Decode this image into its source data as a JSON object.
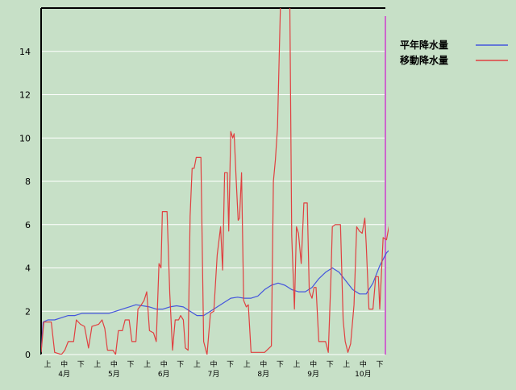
{
  "chart_data": {
    "type": "line",
    "title": "",
    "xlabel": "",
    "ylabel": "",
    "ylim": [
      0,
      16
    ],
    "y_ticks": [
      0,
      2,
      4,
      6,
      8,
      10,
      12,
      14
    ],
    "grid": "horizontal",
    "legend_placement": "top-right",
    "x_period_ticks": [
      "上",
      "中",
      "下",
      "上",
      "中",
      "下",
      "上",
      "中",
      "下",
      "上",
      "中",
      "下",
      "上",
      "中",
      "下",
      "上",
      "中",
      "下",
      "上",
      "中",
      "下"
    ],
    "x_month_labels": [
      "4月",
      "5月",
      "6月",
      "7月",
      "8月",
      "9月",
      "10月"
    ],
    "colors": {
      "background": "#c7e0c7",
      "grid": "#ffffff",
      "axis": "#000000",
      "marker_line": "#cc66cc",
      "normal": "#4455dd",
      "moving": "#e04040"
    },
    "series": [
      {
        "name": "平年降水量",
        "color": "#4455dd",
        "values": [
          [
            0,
            0.1
          ],
          [
            0.3,
            1.5
          ],
          [
            1,
            1.6
          ],
          [
            2,
            1.6
          ],
          [
            3,
            1.7
          ],
          [
            4,
            1.8
          ],
          [
            5,
            1.8
          ],
          [
            6,
            1.9
          ],
          [
            7,
            1.9
          ],
          [
            8,
            1.9
          ],
          [
            9,
            1.9
          ],
          [
            10,
            1.9
          ],
          [
            11,
            2.0
          ],
          [
            12,
            2.1
          ],
          [
            13,
            2.2
          ],
          [
            14,
            2.3
          ],
          [
            15,
            2.25
          ],
          [
            16,
            2.2
          ],
          [
            17,
            2.1
          ],
          [
            18,
            2.1
          ],
          [
            19,
            2.2
          ],
          [
            20,
            2.25
          ],
          [
            21,
            2.2
          ],
          [
            22,
            2.0
          ],
          [
            23,
            1.8
          ],
          [
            24,
            1.8
          ],
          [
            25,
            2.0
          ],
          [
            26,
            2.2
          ],
          [
            27,
            2.4
          ],
          [
            28,
            2.6
          ],
          [
            29,
            2.65
          ],
          [
            30,
            2.6
          ],
          [
            31,
            2.6
          ],
          [
            32,
            2.7
          ],
          [
            33,
            3.0
          ],
          [
            34,
            3.2
          ],
          [
            35,
            3.3
          ],
          [
            36,
            3.2
          ],
          [
            37,
            3.0
          ],
          [
            38,
            2.9
          ],
          [
            39,
            2.9
          ],
          [
            40,
            3.1
          ],
          [
            41,
            3.5
          ],
          [
            42,
            3.8
          ],
          [
            43,
            4.0
          ],
          [
            44,
            3.8
          ],
          [
            45,
            3.4
          ],
          [
            46,
            3.0
          ],
          [
            47,
            2.8
          ],
          [
            48,
            2.8
          ],
          [
            49,
            3.3
          ],
          [
            50,
            4.1
          ],
          [
            51,
            4.7
          ],
          [
            52,
            5.0
          ],
          [
            53,
            5.0
          ],
          [
            54,
            4.7
          ],
          [
            55,
            4.4
          ],
          [
            56,
            4.1
          ],
          [
            57,
            3.9
          ],
          [
            58,
            3.8
          ],
          [
            59,
            3.7
          ],
          [
            60,
            3.5
          ],
          [
            61,
            3.2
          ],
          [
            62,
            2.9
          ],
          [
            63,
            2.7
          ],
          [
            64,
            2.6
          ],
          [
            65,
            2.6
          ],
          [
            66,
            2.7
          ],
          [
            67,
            2.9
          ],
          [
            68,
            3.1
          ],
          [
            69,
            3.3
          ],
          [
            70,
            3.5
          ],
          [
            71,
            3.6
          ],
          [
            71.8,
            3.5
          ]
        ]
      },
      {
        "name": "移動降水量",
        "color": "#e04040",
        "values": [
          [
            0,
            0.1
          ],
          [
            0.4,
            1.5
          ],
          [
            1.5,
            1.5
          ],
          [
            2,
            0.1
          ],
          [
            3,
            0
          ],
          [
            3.5,
            0.2
          ],
          [
            4,
            0.6
          ],
          [
            4.8,
            0.6
          ],
          [
            5.2,
            1.6
          ],
          [
            5.8,
            1.4
          ],
          [
            6.4,
            1.3
          ],
          [
            7,
            0.3
          ],
          [
            7.5,
            1.3
          ],
          [
            8.5,
            1.4
          ],
          [
            9,
            1.6
          ],
          [
            9.4,
            1.2
          ],
          [
            9.8,
            0.2
          ],
          [
            10.6,
            0.2
          ],
          [
            11,
            0
          ],
          [
            11.4,
            1.1
          ],
          [
            12,
            1.1
          ],
          [
            12.4,
            1.6
          ],
          [
            13,
            1.6
          ],
          [
            13.4,
            0.6
          ],
          [
            14,
            0.6
          ],
          [
            14.3,
            2.1
          ],
          [
            14.8,
            2.3
          ],
          [
            15.2,
            2.5
          ],
          [
            15.6,
            2.9
          ],
          [
            16,
            1.1
          ],
          [
            16.6,
            1.0
          ],
          [
            17,
            0.6
          ],
          [
            17.4,
            4.2
          ],
          [
            17.7,
            4.0
          ],
          [
            17.9,
            6.6
          ],
          [
            18.6,
            6.6
          ],
          [
            19,
            2.8
          ],
          [
            19.4,
            0.2
          ],
          [
            19.8,
            1.6
          ],
          [
            20.3,
            1.6
          ],
          [
            20.6,
            1.8
          ],
          [
            21,
            1.6
          ],
          [
            21.3,
            0.3
          ],
          [
            21.7,
            0.2
          ],
          [
            22,
            6.4
          ],
          [
            22.3,
            8.6
          ],
          [
            22.6,
            8.6
          ],
          [
            22.9,
            9.1
          ],
          [
            23.6,
            9.1
          ],
          [
            24,
            0.6
          ],
          [
            24.5,
            0
          ],
          [
            25,
            1.9
          ],
          [
            25.5,
            2.0
          ],
          [
            26,
            4.6
          ],
          [
            26.5,
            5.9
          ],
          [
            26.8,
            3.9
          ],
          [
            27.1,
            8.4
          ],
          [
            27.5,
            8.4
          ],
          [
            27.7,
            5.7
          ],
          [
            28,
            10.3
          ],
          [
            28.3,
            10.0
          ],
          [
            28.5,
            10.2
          ],
          [
            28.8,
            8.1
          ],
          [
            29.1,
            6.2
          ],
          [
            29.3,
            6.3
          ],
          [
            29.6,
            8.4
          ],
          [
            29.9,
            2.5
          ],
          [
            30.3,
            2.2
          ],
          [
            30.6,
            2.3
          ],
          [
            31,
            0.1
          ],
          [
            33,
            0.1
          ],
          [
            34,
            0.4
          ],
          [
            34.3,
            8.0
          ],
          [
            34.6,
            9.0
          ],
          [
            34.9,
            10.5
          ],
          [
            35.1,
            13.0
          ],
          [
            35.4,
            17.0
          ],
          [
            36.2,
            18.0
          ],
          [
            36.7,
            17.0
          ],
          [
            37,
            5.5
          ],
          [
            37.4,
            2.1
          ],
          [
            37.7,
            5.9
          ],
          [
            38,
            5.6
          ],
          [
            38.4,
            4.2
          ],
          [
            38.8,
            7.0
          ],
          [
            39.3,
            7.0
          ],
          [
            39.6,
            2.9
          ],
          [
            40,
            2.6
          ],
          [
            40.3,
            3.1
          ],
          [
            40.6,
            3.1
          ],
          [
            41,
            0.6
          ],
          [
            42,
            0.6
          ],
          [
            42.4,
            0.1
          ],
          [
            42.8,
            3.6
          ],
          [
            43,
            5.9
          ],
          [
            43.4,
            6.0
          ],
          [
            44.2,
            6.0
          ],
          [
            44.6,
            1.6
          ],
          [
            44.9,
            0.6
          ],
          [
            45.3,
            0.1
          ],
          [
            45.7,
            0.5
          ],
          [
            46.2,
            2.3
          ],
          [
            46.6,
            5.9
          ],
          [
            47,
            5.7
          ],
          [
            47.4,
            5.6
          ],
          [
            47.8,
            6.3
          ],
          [
            48,
            5.1
          ],
          [
            48.4,
            2.1
          ],
          [
            49,
            2.1
          ],
          [
            49.4,
            3.6
          ],
          [
            49.8,
            3.6
          ],
          [
            50,
            2.1
          ],
          [
            50.5,
            5.4
          ],
          [
            51,
            5.3
          ],
          [
            51.4,
            6.0
          ],
          [
            51.8,
            4.4
          ],
          [
            52.2,
            4.3
          ],
          [
            52.6,
            1.4
          ],
          [
            53,
            1.0
          ],
          [
            53.4,
            3.4
          ],
          [
            53.8,
            3.0
          ],
          [
            54.2,
            3.1
          ],
          [
            54.6,
            3.6
          ],
          [
            55,
            3.8
          ],
          [
            55.4,
            1.4
          ],
          [
            56,
            1.4
          ],
          [
            56.6,
            1.4
          ],
          [
            57,
            3.3
          ],
          [
            57.4,
            3.3
          ],
          [
            57.8,
            3.1
          ],
          [
            58.2,
            3.6
          ],
          [
            58.6,
            6.4
          ],
          [
            59,
            4.8
          ],
          [
            59.4,
            5.6
          ],
          [
            59.8,
            5.7
          ]
        ]
      }
    ]
  }
}
